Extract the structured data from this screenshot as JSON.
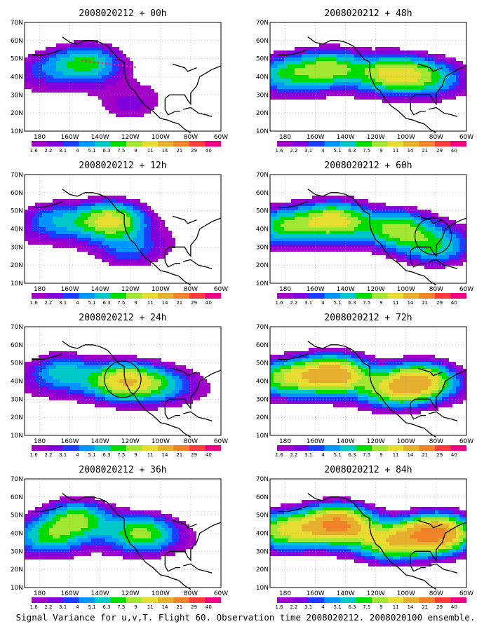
{
  "caption": "Signal Variance for u,v,T. Flight 60. Observation time 2008020212. 2008020100 ensemble.",
  "colorbar": {
    "labels": [
      "1.6",
      "2.2",
      "3.1",
      "4",
      "5.1",
      "6.3",
      "7.5",
      "9",
      "11",
      "14",
      "21",
      "29",
      "40"
    ],
    "colors": [
      "#a000c8",
      "#8200dc",
      "#1e3cff",
      "#0096ff",
      "#00c8c8",
      "#00dc00",
      "#a0e632",
      "#e6dc32",
      "#e6af2d",
      "#f08228",
      "#fa3c3c",
      "#f00082"
    ]
  },
  "axes": {
    "x_ticks": [
      "180",
      "160W",
      "140W",
      "120W",
      "100W",
      "80W",
      "60W"
    ],
    "y_ticks": [
      "10N",
      "20N",
      "30N",
      "40N",
      "50N",
      "60N",
      "70N"
    ]
  },
  "chart_data": [
    {
      "type": "heatmap",
      "title": "2008020212 + 00h",
      "xlim": [
        -190,
        -60
      ],
      "ylim": [
        10,
        70
      ],
      "peaks": [
        [
          -148,
          48,
          6
        ],
        [
          -175,
          45,
          2.5
        ],
        [
          -120,
          23,
          1.8
        ]
      ],
      "circle": null,
      "flight_track": true
    },
    {
      "type": "heatmap",
      "title": "2008020212 + 48h",
      "xlim": [
        -190,
        -60
      ],
      "ylim": [
        10,
        70
      ],
      "peaks": [
        [
          -150,
          45,
          7
        ],
        [
          -110,
          42,
          8
        ],
        [
          -180,
          42,
          5
        ],
        [
          -85,
          40,
          5
        ]
      ],
      "circle": null,
      "flight_track": false
    },
    {
      "type": "heatmap",
      "title": "2008020212 + 12h",
      "xlim": [
        -190,
        -60
      ],
      "ylim": [
        10,
        70
      ],
      "peaks": [
        [
          -133,
          45,
          9
        ],
        [
          -170,
          45,
          4
        ],
        [
          -120,
          28,
          3
        ]
      ],
      "circle": null,
      "flight_track": false
    },
    {
      "type": "heatmap",
      "title": "2008020212 + 60h",
      "xlim": [
        -190,
        -60
      ],
      "ylim": [
        10,
        70
      ],
      "peaks": [
        [
          -147,
          45,
          9
        ],
        [
          -105,
          40,
          7
        ],
        [
          -180,
          42,
          6
        ],
        [
          -80,
          30,
          5
        ]
      ],
      "circle": {
        "lon": -82,
        "lat": 36
      },
      "flight_track": false
    },
    {
      "type": "heatmap",
      "title": "2008020212 + 24h",
      "xlim": [
        -190,
        -60
      ],
      "ylim": [
        10,
        70
      ],
      "peaks": [
        [
          -125,
          40,
          9
        ],
        [
          -165,
          45,
          5
        ],
        [
          -100,
          38,
          4
        ]
      ],
      "circle": {
        "lon": -125,
        "lat": 41
      },
      "flight_track": false
    },
    {
      "type": "heatmap",
      "title": "2008020212 + 72h",
      "xlim": [
        -190,
        -60
      ],
      "ylim": [
        10,
        70
      ],
      "peaks": [
        [
          -148,
          44,
          12
        ],
        [
          -90,
          40,
          10
        ],
        [
          -180,
          42,
          7
        ],
        [
          -110,
          35,
          6
        ]
      ],
      "circle": null,
      "flight_track": false
    },
    {
      "type": "heatmap",
      "title": "2008020212 + 36h",
      "xlim": [
        -190,
        -60
      ],
      "ylim": [
        10,
        70
      ],
      "peaks": [
        [
          -155,
          48,
          7
        ],
        [
          -112,
          40,
          7
        ],
        [
          -175,
          38,
          5
        ]
      ],
      "circle": null,
      "flight_track": false
    },
    {
      "type": "heatmap",
      "title": "2008020212 + 84h",
      "xlim": [
        -190,
        -60
      ],
      "ylim": [
        10,
        70
      ],
      "peaks": [
        [
          -145,
          45,
          14
        ],
        [
          -80,
          40,
          14
        ],
        [
          -180,
          42,
          8
        ],
        [
          -110,
          35,
          8
        ]
      ],
      "circle": null,
      "flight_track": false
    }
  ]
}
